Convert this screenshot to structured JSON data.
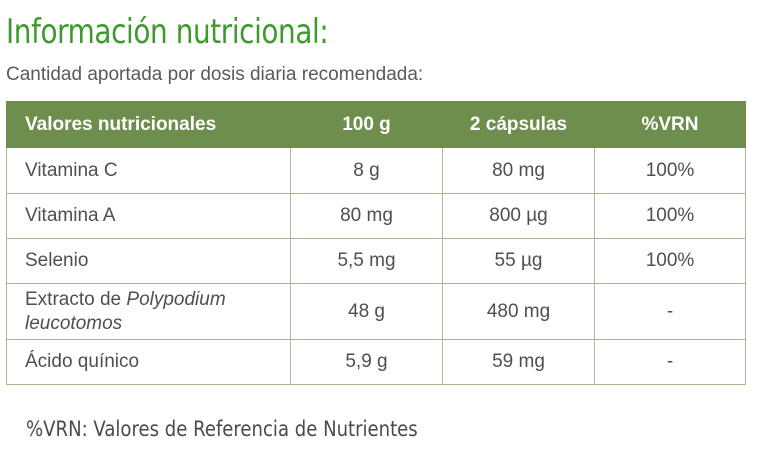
{
  "title": "Información nutricional:",
  "subtitle": "Cantidad aportada por dosis diaria recomendada:",
  "table": {
    "headers": [
      "Valores nutricionales",
      "100 g",
      "2 cápsulas",
      "%VRN"
    ],
    "rows": [
      {
        "name": "Vitamina C",
        "per100g": "8 g",
        "per2caps": "80 mg",
        "vrn": "100%"
      },
      {
        "name": "Vitamina A",
        "per100g": "80 mg",
        "per2caps": "800 µg",
        "vrn": "100%"
      },
      {
        "name": "Selenio",
        "per100g": "5,5 mg",
        "per2caps": "55 µg",
        "vrn": "100%"
      },
      {
        "name_prefix": "Extracto de ",
        "name_italic_1": "Polypodium",
        "name_italic_2": "leucotomos",
        "per100g": "48 g",
        "per2caps": "480 mg",
        "vrn": "-"
      },
      {
        "name": "Ácido quínico",
        "per100g": "5,9 g",
        "per2caps": "59 mg",
        "vrn": "-"
      }
    ]
  },
  "footnote": "%VRN: Valores de Referencia de Nutrientes",
  "colors": {
    "title_green": "#3f9a2e",
    "header_bg": "#6d8e4c",
    "border": "#a6bb8e"
  }
}
